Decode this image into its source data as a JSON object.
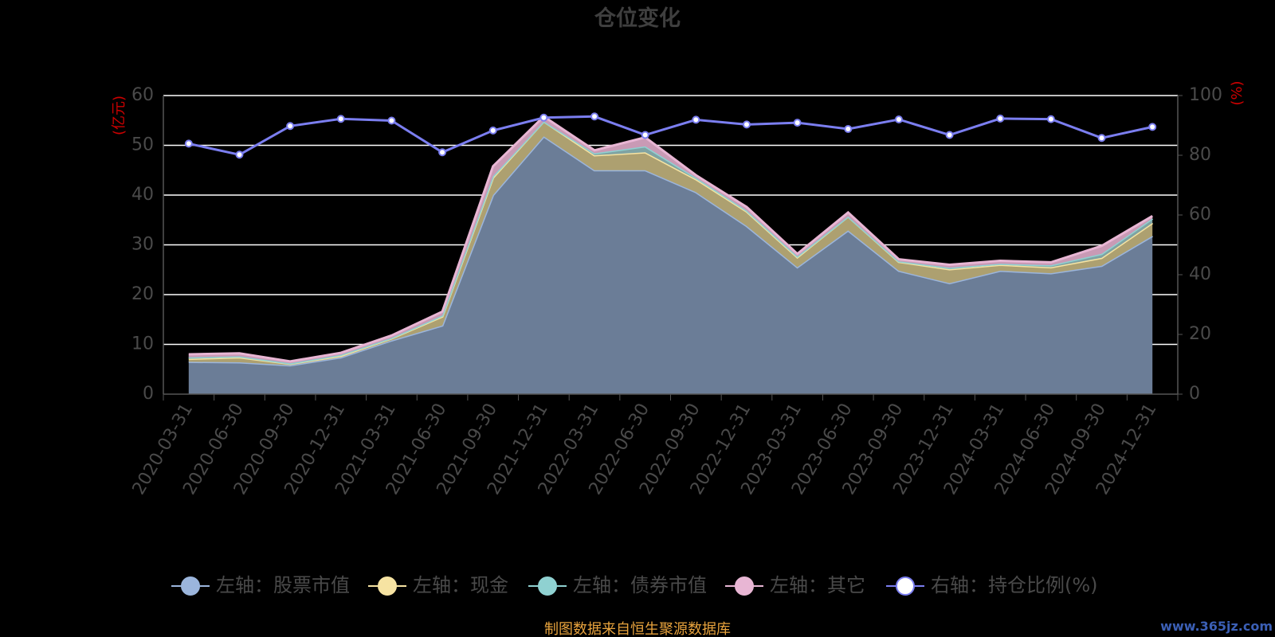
{
  "title": "仓位变化",
  "footer": "制图数据来自恒生聚源数据库",
  "watermark": "www.365jz.com",
  "colors": {
    "background": "#000000",
    "stock": "#9bb5dc",
    "cash": "#f6e3a2",
    "bond": "#8fd1d1",
    "other": "#e8b6d4",
    "ratio_line": "#7b7ef0",
    "grid": "#ffffff",
    "title": "#3f3f3f",
    "axis_unit": "#cc0000",
    "footer": "#e8a33d"
  },
  "chart_data": {
    "type": "area",
    "title": "仓位变化",
    "x": [
      "2020-03-31",
      "2020-06-30",
      "2020-09-30",
      "2020-12-31",
      "2021-03-31",
      "2021-06-30",
      "2021-09-30",
      "2021-12-31",
      "2022-03-31",
      "2022-06-30",
      "2022-09-30",
      "2022-12-31",
      "2023-03-31",
      "2023-06-30",
      "2023-09-30",
      "2023-12-31",
      "2024-03-31",
      "2024-06-30",
      "2024-09-30",
      "2024-12-31"
    ],
    "y_left_label": "(亿元)",
    "y_right_label": "(%)",
    "y_left_range": [
      0,
      60
    ],
    "y_left_ticks": [
      "0",
      "10",
      "20",
      "30",
      "40",
      "50",
      "60"
    ],
    "y_right_range": [
      0,
      100
    ],
    "y_right_ticks": [
      "0",
      "20",
      "40",
      "60",
      "80",
      "100"
    ],
    "stacked": true,
    "grid": true,
    "legend_position": "bottom",
    "series": [
      {
        "name": "左轴：股票市值",
        "axis": "left",
        "color": "#9bb5dc",
        "values": [
          6.5,
          6.4,
          5.8,
          7.4,
          10.8,
          13.8,
          40.0,
          51.8,
          45.0,
          45.0,
          40.6,
          33.8,
          25.5,
          32.9,
          24.8,
          22.3,
          24.8,
          24.3,
          25.8,
          31.8
        ]
      },
      {
        "name": "左轴：现金",
        "axis": "left",
        "color": "#f6e3a2",
        "values": [
          0.6,
          1.0,
          0.3,
          0.3,
          0.4,
          1.8,
          3.5,
          3.0,
          3.0,
          3.6,
          2.6,
          2.9,
          2.0,
          2.8,
          1.8,
          2.8,
          1.2,
          1.2,
          1.6,
          2.6
        ]
      },
      {
        "name": "左轴：债券市值",
        "axis": "left",
        "color": "#8fd1d1",
        "values": [
          0.3,
          0.2,
          0.1,
          0.2,
          0.1,
          0.2,
          0.3,
          0.0,
          0.4,
          1.2,
          0.3,
          0.2,
          0.2,
          0.0,
          0.1,
          0.3,
          0.2,
          0.4,
          0.8,
          0.9
        ]
      },
      {
        "name": "左轴：其它",
        "axis": "left",
        "color": "#e8b6d4",
        "values": [
          0.6,
          0.6,
          0.4,
          0.4,
          0.5,
          0.8,
          2.0,
          1.0,
          0.6,
          1.8,
          0.5,
          0.7,
          0.5,
          0.8,
          0.4,
          0.6,
          0.6,
          0.6,
          1.6,
          0.5
        ]
      },
      {
        "name": "右轴：持仓比例(%)",
        "axis": "right",
        "color": "#7b7ef0",
        "values": [
          83.9,
          80.2,
          89.8,
          92.2,
          91.6,
          81.0,
          88.3,
          92.6,
          93.0,
          86.8,
          91.9,
          90.3,
          90.9,
          88.8,
          92.0,
          86.8,
          92.3,
          92.1,
          85.8,
          89.5
        ]
      }
    ]
  }
}
